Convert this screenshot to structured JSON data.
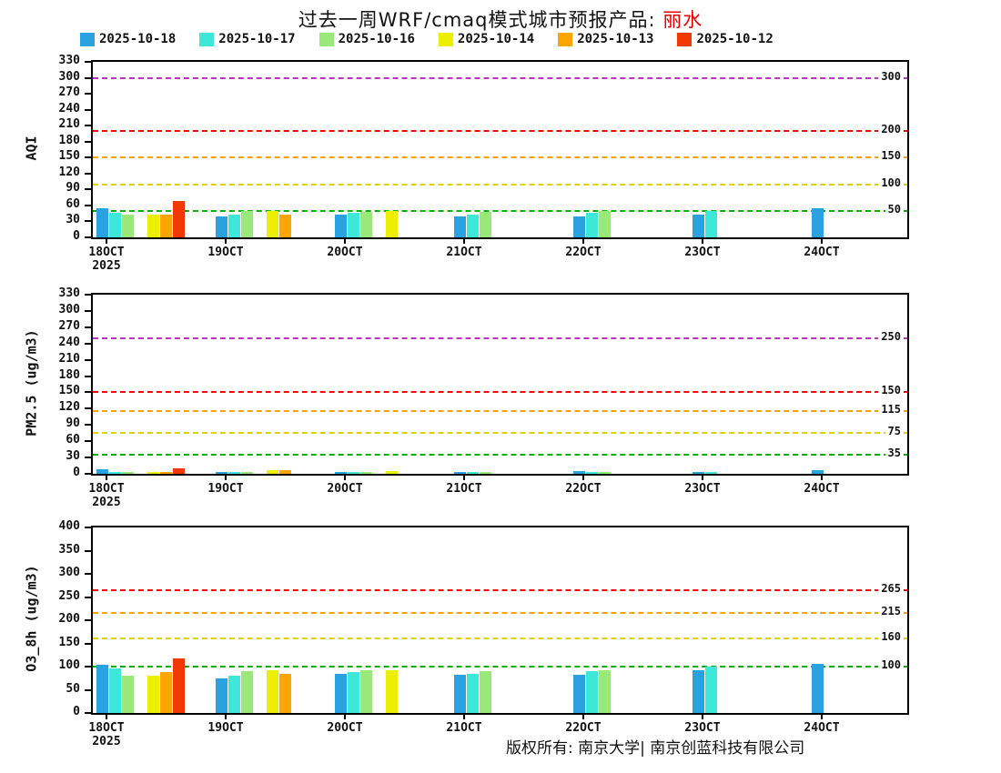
{
  "title": {
    "main": "过去一周WRF/cmaq模式城市预报产品: ",
    "city": "丽水"
  },
  "footer": "版权所有: 南京大学| 南京创蓝科技有限公司",
  "x_year_label": "2025",
  "legend": [
    {
      "label": "2025-10-18",
      "color": "#2AA1E0"
    },
    {
      "label": "2025-10-17",
      "color": "#3EE8D8"
    },
    {
      "label": "2025-10-16",
      "color": "#9BE87A"
    },
    {
      "label": "2025-10-14",
      "color": "#EEEE00"
    },
    {
      "label": "2025-10-13",
      "color": "#FFA500"
    },
    {
      "label": "2025-10-12",
      "color": "#F03800"
    }
  ],
  "chart_data": [
    {
      "id": "aqi",
      "type": "bar",
      "ylabel": "AQI",
      "ylim": [
        0,
        330
      ],
      "ytick_step": 30,
      "grid": false,
      "legend_position": "top",
      "categories": [
        "18OCT",
        "19OCT",
        "20OCT",
        "21OCT",
        "22OCT",
        "23OCT",
        "24OCT"
      ],
      "series": [
        {
          "name": "2025-10-18",
          "color": "#2AA1E0",
          "values": [
            55,
            40,
            42,
            40,
            40,
            42,
            55
          ]
        },
        {
          "name": "2025-10-17",
          "color": "#3EE8D8",
          "values": [
            46,
            42,
            46,
            43,
            46,
            50,
            null
          ]
        },
        {
          "name": "2025-10-16",
          "color": "#9BE87A",
          "values": [
            42,
            50,
            48,
            48,
            50,
            null,
            null
          ]
        },
        {
          "name": "2025-10-14",
          "color": "#EEEE00",
          "values": [
            42,
            50,
            50,
            null,
            null,
            null,
            null
          ]
        },
        {
          "name": "2025-10-13",
          "color": "#FFA500",
          "values": [
            42,
            42,
            null,
            null,
            null,
            null,
            null
          ]
        },
        {
          "name": "2025-10-12",
          "color": "#F03800",
          "values": [
            68,
            null,
            null,
            null,
            null,
            null,
            null
          ]
        }
      ],
      "thresholds": [
        {
          "value": 50,
          "label": "50",
          "color": "#00B000"
        },
        {
          "value": 100,
          "label": "100",
          "color": "#E0D000"
        },
        {
          "value": 150,
          "label": "150",
          "color": "#FFA000"
        },
        {
          "value": 200,
          "label": "200",
          "color": "#FF0000"
        },
        {
          "value": 300,
          "label": "300",
          "color": "#C030C0"
        }
      ]
    },
    {
      "id": "pm25",
      "type": "bar",
      "ylabel": "PM2.5 (ug/m3)",
      "ylim": [
        0,
        330
      ],
      "ytick_step": 30,
      "grid": false,
      "legend_position": "top",
      "categories": [
        "18OCT",
        "19OCT",
        "20OCT",
        "21OCT",
        "22OCT",
        "23OCT",
        "24OCT"
      ],
      "series": [
        {
          "name": "2025-10-18",
          "color": "#2AA1E0",
          "values": [
            8,
            4,
            3,
            3,
            5,
            4,
            6
          ]
        },
        {
          "name": "2025-10-17",
          "color": "#3EE8D8",
          "values": [
            4,
            4,
            3,
            3,
            4,
            4,
            null
          ]
        },
        {
          "name": "2025-10-16",
          "color": "#9BE87A",
          "values": [
            3,
            4,
            3,
            4,
            4,
            null,
            null
          ]
        },
        {
          "name": "2025-10-14",
          "color": "#EEEE00",
          "values": [
            3,
            7,
            5,
            null,
            null,
            null,
            null
          ]
        },
        {
          "name": "2025-10-13",
          "color": "#FFA500",
          "values": [
            3,
            6,
            null,
            null,
            null,
            null,
            null
          ]
        },
        {
          "name": "2025-10-12",
          "color": "#F03800",
          "values": [
            10,
            null,
            null,
            null,
            null,
            null,
            null
          ]
        }
      ],
      "thresholds": [
        {
          "value": 35,
          "label": "35",
          "color": "#00B000"
        },
        {
          "value": 75,
          "label": "75",
          "color": "#E0D000"
        },
        {
          "value": 115,
          "label": "115",
          "color": "#FFA000"
        },
        {
          "value": 150,
          "label": "150",
          "color": "#FF0000"
        },
        {
          "value": 250,
          "label": "250",
          "color": "#C030C0"
        }
      ]
    },
    {
      "id": "o3_8h",
      "type": "bar",
      "ylabel": "O3_8h (ug/m3)",
      "ylim": [
        0,
        400
      ],
      "ytick_step": 50,
      "grid": false,
      "legend_position": "top",
      "categories": [
        "18OCT",
        "19OCT",
        "20OCT",
        "21OCT",
        "22OCT",
        "23OCT",
        "24OCT"
      ],
      "series": [
        {
          "name": "2025-10-18",
          "color": "#2AA1E0",
          "values": [
            103,
            75,
            85,
            82,
            82,
            92,
            105
          ]
        },
        {
          "name": "2025-10-17",
          "color": "#3EE8D8",
          "values": [
            97,
            80,
            88,
            85,
            90,
            100,
            null
          ]
        },
        {
          "name": "2025-10-16",
          "color": "#9BE87A",
          "values": [
            80,
            90,
            92,
            90,
            93,
            null,
            null
          ]
        },
        {
          "name": "2025-10-14",
          "color": "#EEEE00",
          "values": [
            80,
            92,
            93,
            null,
            null,
            null,
            null
          ]
        },
        {
          "name": "2025-10-13",
          "color": "#FFA500",
          "values": [
            88,
            85,
            null,
            null,
            null,
            null,
            null
          ]
        },
        {
          "name": "2025-10-12",
          "color": "#F03800",
          "values": [
            118,
            null,
            null,
            null,
            null,
            null,
            null
          ]
        }
      ],
      "thresholds": [
        {
          "value": 100,
          "label": "100",
          "color": "#00B000"
        },
        {
          "value": 160,
          "label": "160",
          "color": "#E0D000"
        },
        {
          "value": 215,
          "label": "215",
          "color": "#FFA000"
        },
        {
          "value": 265,
          "label": "265",
          "color": "#FF0000"
        }
      ]
    }
  ]
}
